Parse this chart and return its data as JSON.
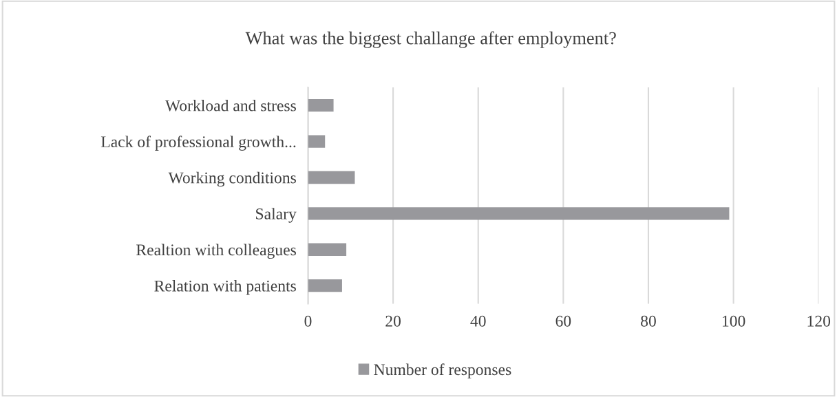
{
  "chart_data": {
    "type": "bar",
    "orientation": "horizontal",
    "title": "What was the biggest challange after employment?",
    "categories": [
      "Workload and stress",
      "Lack of professional growth...",
      "Working conditions",
      "Salary",
      "Realtion with colleagues",
      "Relation with patients"
    ],
    "series": [
      {
        "name": "Number of responses",
        "color": "#98989c",
        "values": [
          6,
          4,
          11,
          99,
          9,
          8
        ]
      }
    ],
    "xlim": [
      0,
      120
    ],
    "xticks": [
      0,
      20,
      40,
      60,
      80,
      100,
      120
    ],
    "grid": "x",
    "legend": "bottom"
  }
}
